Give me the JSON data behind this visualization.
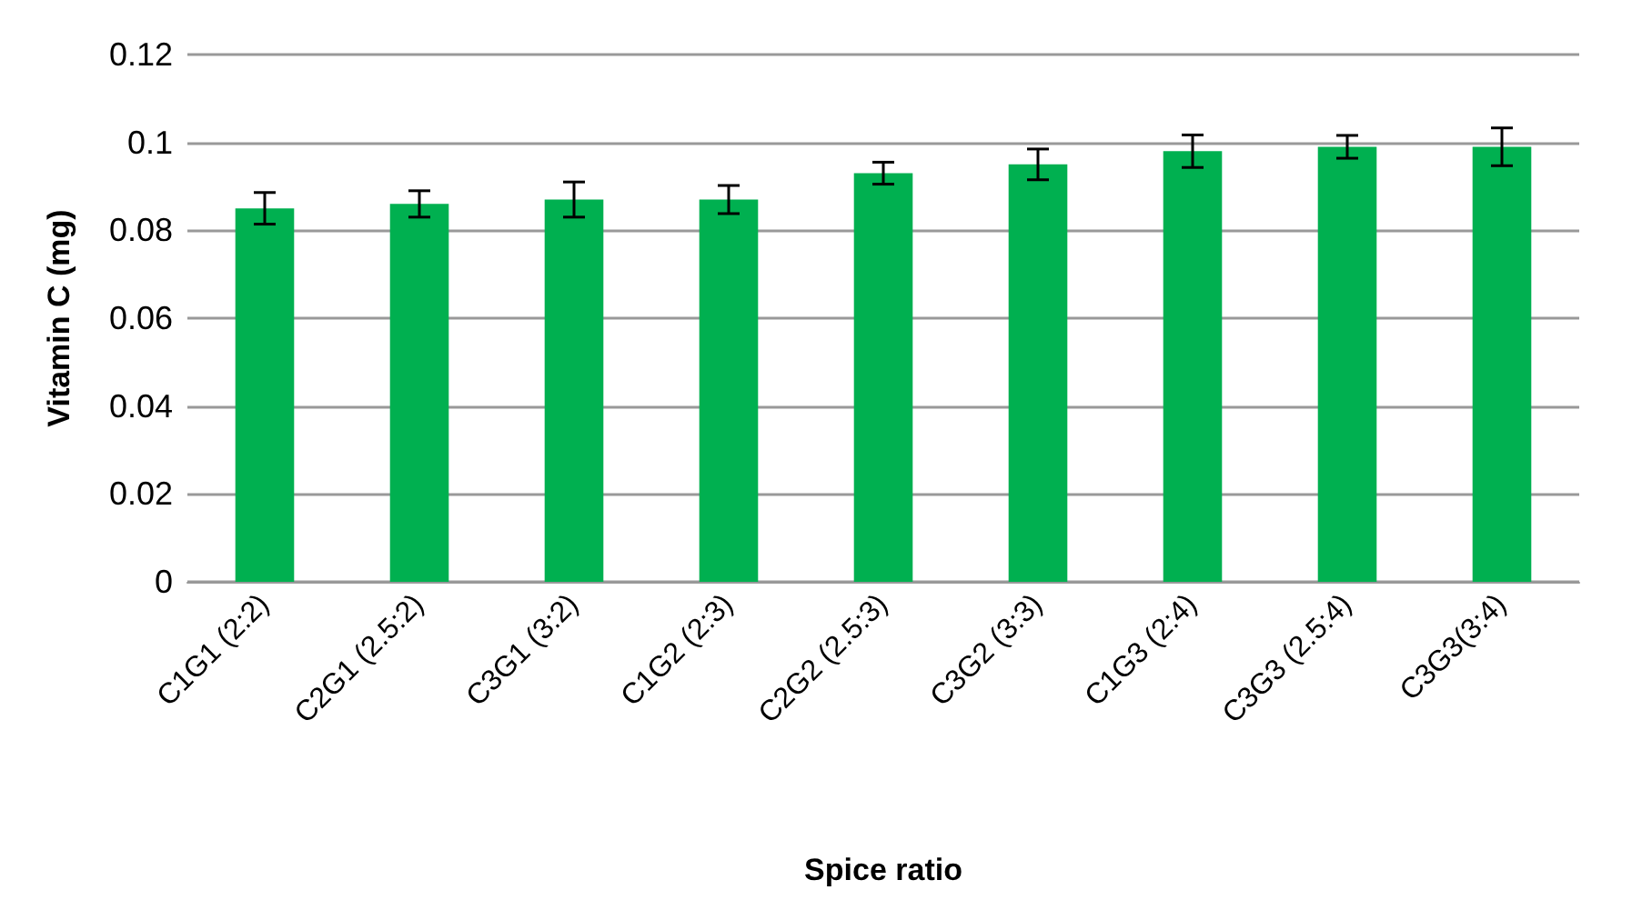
{
  "chart_data": {
    "type": "bar",
    "xlabel": "Spice ratio",
    "ylabel": "Vitamin C (mg)",
    "categories": [
      "C1G1 (2:2)",
      "C2G1 (2.5:2)",
      "C3G1 (3:2)",
      "C1G2 (2:3)",
      "C2G2 (2.5:3)",
      "C3G2 (3:3)",
      "C1G3 (2:4)",
      "C3G3 (2.5:4)",
      "C3G3(3:4)"
    ],
    "values": [
      0.085,
      0.086,
      0.087,
      0.087,
      0.093,
      0.095,
      0.098,
      0.099,
      0.099
    ],
    "errors": [
      0.0036,
      0.003,
      0.004,
      0.0032,
      0.0025,
      0.0035,
      0.0037,
      0.0026,
      0.0043
    ],
    "color": "#00b050",
    "ylim": [
      0,
      0.12
    ],
    "yticks": [
      0,
      0.02,
      0.04,
      0.06,
      0.08,
      0.1,
      0.12
    ],
    "grid": "y"
  }
}
